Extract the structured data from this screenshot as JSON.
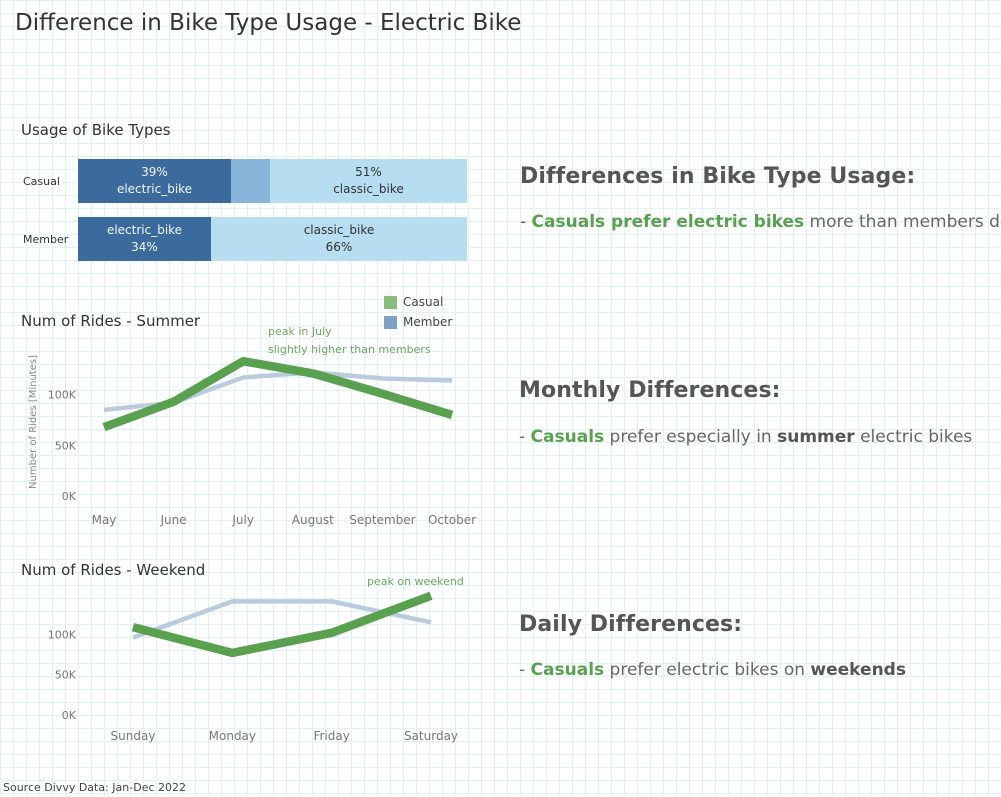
{
  "title": "Difference in Bike Type Usage - Electric Bike",
  "source": "Source Divvy Data: Jan-Dec 2022",
  "colors": {
    "casual": "#59a14f",
    "member": "#b9cbdc",
    "legend_member": "#7f9fc4",
    "legend_casual": "#86bd7b",
    "electric_dark": "#3a6b9c",
    "light": "#b7ddf1"
  },
  "usage": {
    "title": "Usage of Bike Types",
    "rows": [
      {
        "label": "Casual",
        "segments": [
          {
            "type": "electric_bike",
            "pct": "39%",
            "share": 0.39,
            "order": "pct-first"
          },
          {
            "type": "",
            "pct": "",
            "share": 0.1,
            "order": "none"
          },
          {
            "type": "classic_bike",
            "pct": "51%",
            "share": 0.51,
            "order": "pct-first"
          }
        ]
      },
      {
        "label": "Member",
        "segments": [
          {
            "type": "electric_bike",
            "pct": "34%",
            "share": 0.34,
            "order": "type-first"
          },
          {
            "type": "classic_bike",
            "pct": "66%",
            "share": 0.66,
            "order": "type-first"
          }
        ]
      }
    ]
  },
  "legend": {
    "casual": "Casual",
    "member": "Member"
  },
  "chart_data": [
    {
      "type": "line",
      "title": "Num of Rides - Summer",
      "ylabel": "Number of Rides [Minutes]",
      "categories": [
        "May",
        "June",
        "July",
        "August",
        "September",
        "October"
      ],
      "yticks": [
        "100K",
        "50K",
        "0K"
      ],
      "ytick_values": [
        100000,
        50000,
        0
      ],
      "ylim": [
        0,
        150000
      ],
      "series": [
        {
          "name": "Member",
          "values": [
            85000,
            92000,
            117000,
            122000,
            116000,
            114000
          ]
        },
        {
          "name": "Casual",
          "values": [
            68000,
            93000,
            133000,
            121000,
            101000,
            80000
          ]
        }
      ],
      "annotation": {
        "lines": [
          "peak in July",
          "slightly higher than members"
        ]
      }
    },
    {
      "type": "line",
      "title": "Num of Rides - Weekend",
      "categories": [
        "Sunday",
        "Monday",
        "Friday",
        "Saturday"
      ],
      "yticks": [
        "100K",
        "50K",
        "0K"
      ],
      "ytick_values": [
        100000,
        50000,
        0
      ],
      "ylim": [
        0,
        170000
      ],
      "series": [
        {
          "name": "Member",
          "values": [
            96000,
            141000,
            141000,
            115000
          ]
        },
        {
          "name": "Casual",
          "values": [
            109000,
            77000,
            102000,
            148000
          ]
        }
      ],
      "annotation": {
        "lines": [
          "peak on weekend"
        ]
      }
    }
  ],
  "notes": {
    "usage": {
      "heading": "Differences in Bike Type Usage:",
      "prefix": "- ",
      "hl": "Casuals prefer electric bikes",
      "rest": " more than members do"
    },
    "monthly": {
      "heading": "Monthly Differences:",
      "prefix": "- ",
      "hl": "Casuals",
      "mid": " prefer especially in ",
      "em": "summer",
      "rest": " electric bikes"
    },
    "daily": {
      "heading": "Daily Differences:",
      "prefix": "- ",
      "hl": "Casuals",
      "mid": " prefer electric bikes on ",
      "em": "weekends"
    }
  }
}
